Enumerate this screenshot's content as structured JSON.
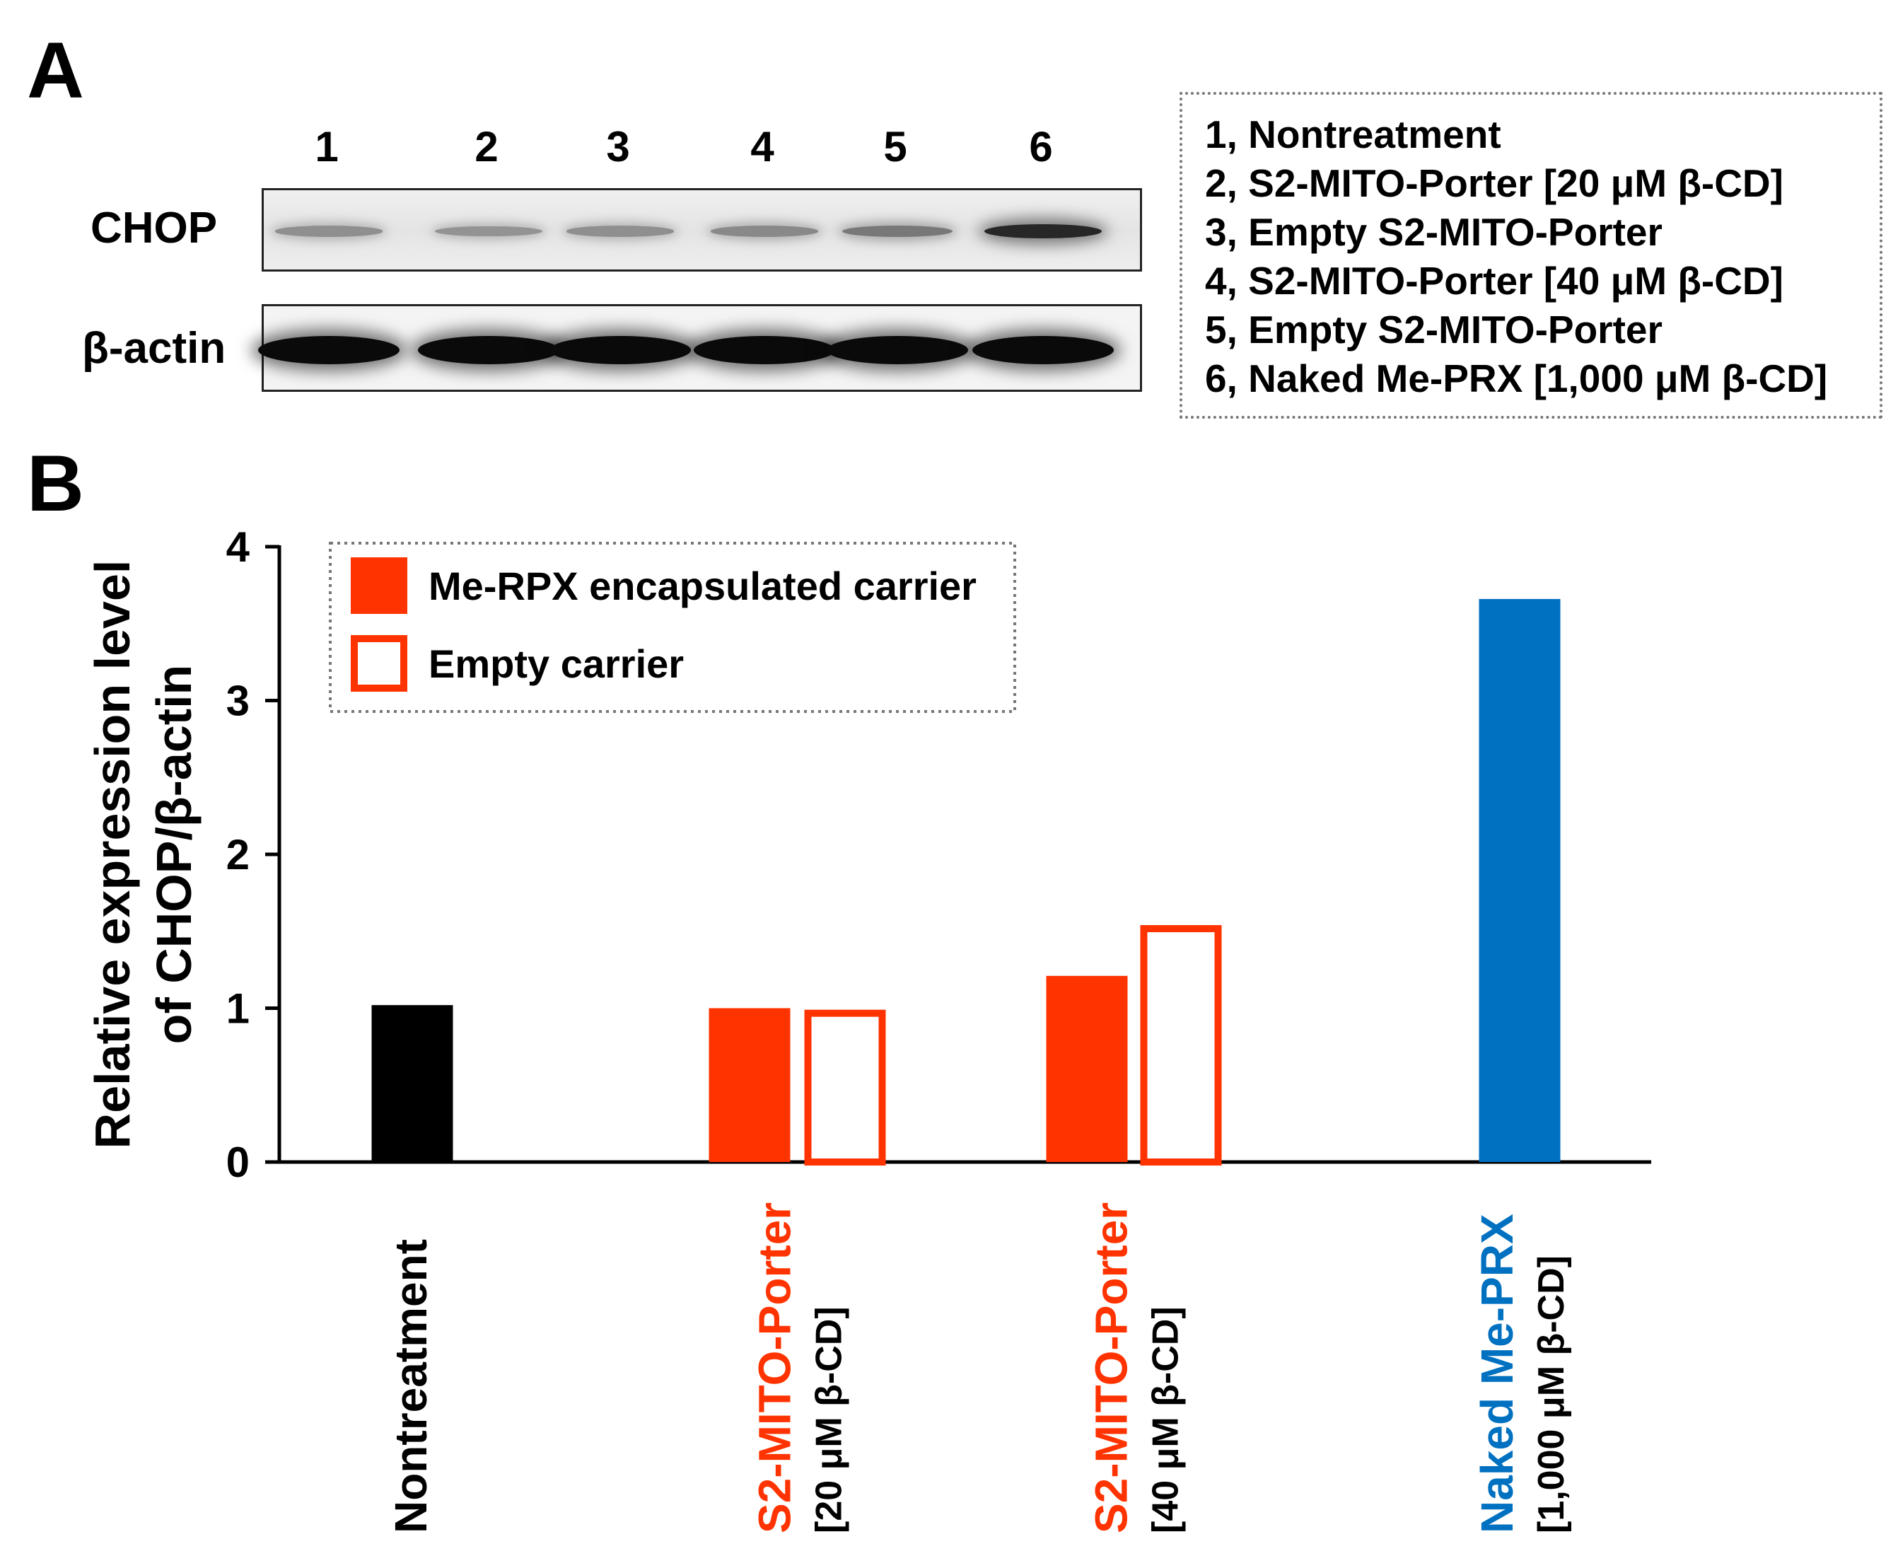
{
  "panel_a": {
    "letter": "A",
    "lanes": [
      "1",
      "2",
      "3",
      "4",
      "5",
      "6"
    ],
    "rows": [
      {
        "label": "CHOP",
        "band_intensity": [
          0.3,
          0.28,
          0.3,
          0.33,
          0.42,
          0.85
        ]
      },
      {
        "label": "β-actin",
        "band_intensity": [
          1.0,
          1.0,
          1.0,
          1.0,
          1.0,
          1.0
        ]
      }
    ],
    "key": [
      "1, Nontreatment",
      "2, S2-MITO-Porter [20 μM β-CD]",
      "3, Empty S2-MITO-Porter",
      "4, S2-MITO-Porter [40 μM β-CD]",
      "5, Empty S2-MITO-Porter",
      "6, Naked Me-PRX [1,000 μM β-CD]"
    ]
  },
  "panel_b": {
    "letter": "B"
  },
  "colors": {
    "black": "#000000",
    "red": "#ff3300",
    "blue": "#0070c0"
  },
  "chart_data": {
    "type": "bar",
    "ylabel_lines": [
      "Relative expression level",
      "of CHOP/β-actin"
    ],
    "ylim": [
      0,
      4
    ],
    "yticks": [
      "0",
      "1",
      "2",
      "3",
      "4"
    ],
    "legend": {
      "placement": "top-left",
      "entries": [
        {
          "label": "Me-RPX encapsulated carrier",
          "style": "filled",
          "color": "#ff3300"
        },
        {
          "label": "Empty carrier",
          "style": "outline",
          "color": "#ff3300"
        }
      ]
    },
    "groups": [
      {
        "name": "Nontreatment",
        "subname": "",
        "name_color": "#000000",
        "bars": [
          {
            "value": 1.02,
            "color": "#000000",
            "style": "filled"
          }
        ]
      },
      {
        "name": "S2-MITO-Porter",
        "subname": "[20 μM β-CD]",
        "name_color": "#ff3300",
        "bars": [
          {
            "value": 1.0,
            "color": "#ff3300",
            "style": "filled"
          },
          {
            "value": 0.99,
            "color": "#ff3300",
            "style": "outline"
          }
        ]
      },
      {
        "name": "S2-MITO-Porter",
        "subname": "[40 μM β-CD]",
        "name_color": "#ff3300",
        "bars": [
          {
            "value": 1.21,
            "color": "#ff3300",
            "style": "filled"
          },
          {
            "value": 1.54,
            "color": "#ff3300",
            "style": "outline"
          }
        ]
      },
      {
        "name": "Naked Me-PRX",
        "subname": "[1,000 μM β-CD]",
        "name_color": "#0070c0",
        "bars": [
          {
            "value": 3.66,
            "color": "#0070c0",
            "style": "filled"
          }
        ]
      }
    ]
  }
}
